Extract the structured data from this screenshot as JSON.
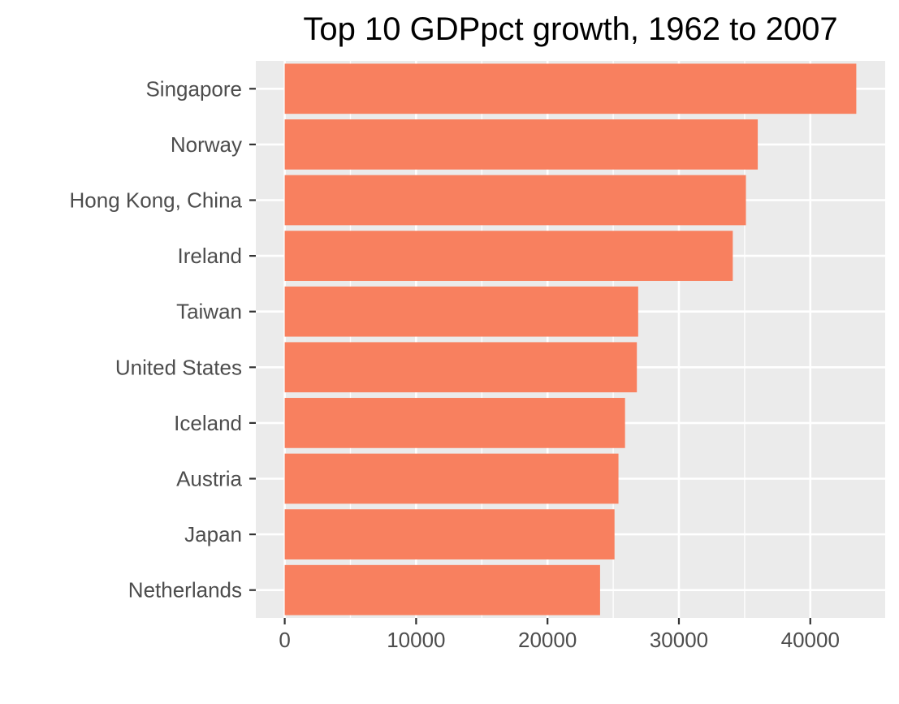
{
  "chart_data": {
    "type": "bar",
    "orientation": "horizontal",
    "title": "Top 10 GDPpct growth, 1962 to 2007",
    "xlabel": "",
    "ylabel": "",
    "categories": [
      "Singapore",
      "Norway",
      "Hong Kong, China",
      "Ireland",
      "Taiwan",
      "United States",
      "Iceland",
      "Austria",
      "Japan",
      "Netherlands"
    ],
    "values": [
      43500,
      36000,
      35100,
      34100,
      26900,
      26800,
      25900,
      25400,
      25100,
      24000
    ],
    "xlim": [
      -2200,
      45700
    ],
    "xticks": [
      0,
      10000,
      20000,
      30000,
      40000
    ],
    "xtick_labels": [
      "0",
      "10000",
      "20000",
      "30000",
      "40000"
    ],
    "grid": true,
    "colors": {
      "bar": "#f8805f",
      "panel": "#ebebeb",
      "grid": "#ffffff",
      "tick_text": "#4d4d4d"
    }
  }
}
